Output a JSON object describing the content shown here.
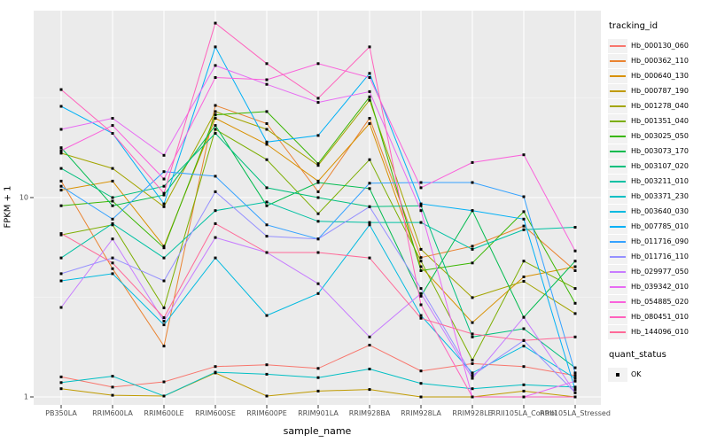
{
  "chart_data": {
    "type": "line",
    "title": "",
    "xlabel": "sample_name",
    "ylabel": "FPKM + 1",
    "y_scale": "log10",
    "y_tick_values": [
      10,
      1
    ],
    "y_tick_labels": [
      "10",
      "1"
    ],
    "ylim": [
      0.91,
      87
    ],
    "grid": true,
    "panel_background": "#EBEBEB",
    "gridline_color": "#FFFFFF",
    "point_marker": "black-square",
    "point_color": "#000000",
    "legend_position": "right",
    "legend_title": "tracking_id",
    "quant_legend_title": "quant_status",
    "quant_legend_items": [
      "OK"
    ],
    "categories": [
      "PB350LA",
      "RRIM600LA",
      "RRIM600LE",
      "RRIM600SE",
      "RRIM600PE",
      "RRIM901LA",
      "RRIM928BA",
      "RRIM928LA",
      "RRIM928LE",
      "RRII105LA_Control",
      "RRII105LA_Stressed"
    ],
    "series": [
      {
        "name": "Hb_000130_060",
        "color": "#F8766D",
        "values": [
          1.26,
          1.12,
          1.19,
          1.42,
          1.45,
          1.39,
          1.82,
          1.35,
          1.47,
          1.42,
          1.28
        ]
      },
      {
        "name": "Hb_000362_110",
        "color": "#EA8331",
        "values": [
          12.1,
          4.4,
          1.8,
          29,
          23.5,
          10.7,
          25,
          5.0,
          5.7,
          7.2,
          4.3
        ]
      },
      {
        "name": "Hb_000640_130",
        "color": "#D89000",
        "values": [
          10.9,
          12.1,
          5.7,
          25,
          18.5,
          12.1,
          23.5,
          4.5,
          2.36,
          4.0,
          4.5
        ]
      },
      {
        "name": "Hb_000787_190",
        "color": "#C09B00",
        "values": [
          1.1,
          1.02,
          1.01,
          1.32,
          1.01,
          1.07,
          1.09,
          1.0,
          1.0,
          1.07,
          1.0
        ]
      },
      {
        "name": "Hb_001278_040",
        "color": "#A3A500",
        "values": [
          16.7,
          14.0,
          9.0,
          27,
          22,
          14.5,
          30.8,
          5.5,
          3.15,
          3.8,
          2.62
        ]
      },
      {
        "name": "Hb_001351_040",
        "color": "#7CAE00",
        "values": [
          6.5,
          7.3,
          2.8,
          22,
          15.5,
          8.3,
          15.5,
          4.8,
          1.53,
          4.8,
          3.5
        ]
      },
      {
        "name": "Hb_003025_050",
        "color": "#39B600",
        "values": [
          9.1,
          9.6,
          5.6,
          26,
          27,
          14.8,
          32,
          4.3,
          4.7,
          8.5,
          2.95
        ]
      },
      {
        "name": "Hb_003073_170",
        "color": "#00BB4E",
        "values": [
          17.8,
          9.1,
          10.3,
          23,
          9.1,
          11.9,
          11.1,
          3.2,
          8.6,
          2.51,
          4.8
        ]
      },
      {
        "name": "Hb_003107_020",
        "color": "#00BF7D",
        "values": [
          14.0,
          10.0,
          11.4,
          21,
          11.2,
          10.0,
          9.0,
          9.1,
          2.0,
          2.2,
          1.4
        ]
      },
      {
        "name": "Hb_003211_010",
        "color": "#00C1A3",
        "values": [
          4.98,
          7.4,
          4.98,
          8.6,
          9.5,
          7.6,
          7.5,
          7.5,
          5.5,
          6.9,
          7.1
        ]
      },
      {
        "name": "Hb_003371_230",
        "color": "#00BFC4",
        "values": [
          1.18,
          1.27,
          1.01,
          1.33,
          1.3,
          1.25,
          1.38,
          1.17,
          1.1,
          1.15,
          1.12
        ]
      },
      {
        "name": "Hb_003640_030",
        "color": "#00BAE0",
        "values": [
          3.82,
          4.15,
          2.3,
          4.98,
          2.56,
          3.3,
          7.3,
          2.56,
          1.32,
          1.8,
          1.24
        ]
      },
      {
        "name": "Hb_007785_010",
        "color": "#00B0F6",
        "values": [
          28.7,
          21.0,
          9.3,
          57,
          19.0,
          20.5,
          42,
          9.3,
          8.6,
          7.8,
          1.09
        ]
      },
      {
        "name": "Hb_011716_090",
        "color": "#35A2FF",
        "values": [
          11.4,
          7.8,
          13.5,
          12.8,
          7.3,
          6.2,
          11.8,
          11.9,
          11.9,
          10.1,
          1.32
        ]
      },
      {
        "name": "Hb_011716_110",
        "color": "#9590FF",
        "values": [
          4.15,
          4.98,
          3.82,
          10.7,
          6.4,
          6.2,
          9.0,
          3.5,
          1.28,
          1.92,
          1.05
        ]
      },
      {
        "name": "Hb_029977_050",
        "color": "#C77CFF",
        "values": [
          2.81,
          6.2,
          2.4,
          6.3,
          5.3,
          3.7,
          2.0,
          3.3,
          1.24,
          2.51,
          1.05
        ]
      },
      {
        "name": "Hb_039342_010",
        "color": "#E76BF3",
        "values": [
          22.0,
          25.0,
          16.3,
          46,
          37,
          30,
          34,
          8.6,
          1.0,
          1.0,
          1.2
        ]
      },
      {
        "name": "Hb_054885_020",
        "color": "#FA62DB",
        "values": [
          17.2,
          23.0,
          12.4,
          40,
          39,
          47,
          40,
          11.2,
          15.0,
          16.4,
          5.4
        ]
      },
      {
        "name": "Hb_080451_010",
        "color": "#FF62BC",
        "values": [
          34.8,
          21.0,
          10.5,
          75,
          47,
          31.5,
          57,
          2.9,
          1.0,
          1.0,
          1.0
        ]
      },
      {
        "name": "Hb_144096_010",
        "color": "#FF6A98",
        "values": [
          6.6,
          4.7,
          2.5,
          7.4,
          5.3,
          5.3,
          4.98,
          2.48,
          2.07,
          1.92,
          2.0
        ]
      }
    ]
  }
}
